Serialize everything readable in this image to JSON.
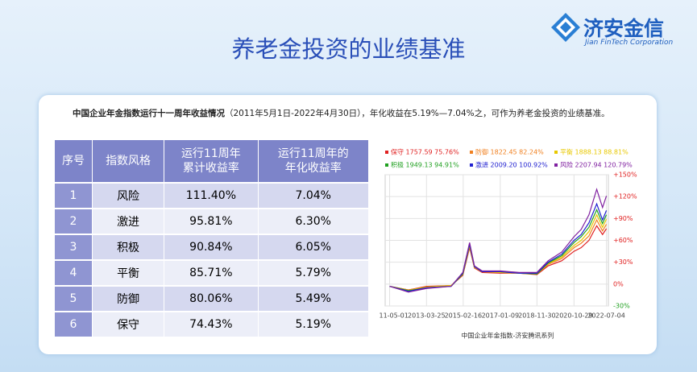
{
  "header": {
    "title": "养老金投资的业绩基准",
    "logo_name": "济安金信",
    "logo_sub": "Jian FinTech Corporation"
  },
  "description": {
    "bold": "中国企业年金指数运行十一周年收益情况",
    "rest": "（2011年5月1日-2022年4月30日），年化收益在5.19%—7.04%之，可作为养老金投资的业绩基准。"
  },
  "table": {
    "columns": [
      "序号",
      "指数风格",
      "运行11周年\n累计收益率",
      "运行11周年的\n年化收益率"
    ],
    "rows": [
      [
        "1",
        "风险",
        "111.40%",
        "7.04%"
      ],
      [
        "2",
        "激进",
        "95.81%",
        "6.30%"
      ],
      [
        "3",
        "积极",
        "90.84%",
        "6.05%"
      ],
      [
        "4",
        "平衡",
        "85.71%",
        "5.79%"
      ],
      [
        "5",
        "防御",
        "80.06%",
        "5.49%"
      ],
      [
        "6",
        "保守",
        "74.43%",
        "5.19%"
      ]
    ]
  },
  "chart_data": {
    "type": "line",
    "source": "中国企业年金指数-济安腾讯系列",
    "x": [
      2011.33,
      2012.3,
      2013.23,
      2014.5,
      2015.1,
      2015.45,
      2015.7,
      2016.1,
      2017.03,
      2018.0,
      2018.92,
      2019.5,
      2020.2,
      2020.83,
      2021.2,
      2021.6,
      2022.0,
      2022.3,
      2022.5
    ],
    "xlim": [
      2011.1,
      2022.6
    ],
    "xticks": [
      {
        "value": 2011.33,
        "label": "2011-05-01"
      },
      {
        "value": 2013.23,
        "label": "2013-03-25"
      },
      {
        "value": 2015.12,
        "label": "2015-02-16"
      },
      {
        "value": 2017.03,
        "label": "2017-01-09"
      },
      {
        "value": 2018.92,
        "label": "2018-11-30"
      },
      {
        "value": 2020.83,
        "label": "2020-10-29"
      },
      {
        "value": 2022.5,
        "label": "2022-07-04"
      }
    ],
    "ylim": [
      -30,
      150
    ],
    "yticks": [
      {
        "value": 150,
        "label": "+150%"
      },
      {
        "value": 120,
        "label": "+120%"
      },
      {
        "value": 90,
        "label": "+90%"
      },
      {
        "value": 60,
        "label": "+60%"
      },
      {
        "value": 30,
        "label": "+30%"
      },
      {
        "value": 0,
        "label": "0%"
      },
      {
        "value": -30,
        "label": "-30%"
      }
    ],
    "grid": true,
    "series": [
      {
        "name": "保守 1757.59 75.76%",
        "color": "#e02020",
        "values": [
          -3,
          -8,
          -3,
          -2,
          12,
          50,
          22,
          16,
          15,
          15,
          13,
          25,
          32,
          45,
          50,
          60,
          80,
          68,
          76
        ]
      },
      {
        "name": "防御 1822.45 82.24%",
        "color": "#f08020",
        "values": [
          -3,
          -8,
          -4,
          -2,
          13,
          52,
          23,
          17,
          16,
          15,
          14,
          27,
          35,
          50,
          56,
          66,
          88,
          73,
          82
        ]
      },
      {
        "name": "平衡 1888.13 88.81%",
        "color": "#e8c800",
        "values": [
          -3,
          -9,
          -4,
          -2,
          14,
          53,
          23,
          17,
          16,
          15,
          14,
          28,
          37,
          53,
          60,
          72,
          95,
          78,
          89
        ]
      },
      {
        "name": "积极 1949.13 94.91%",
        "color": "#20a020",
        "values": [
          -3,
          -9,
          -5,
          -3,
          14,
          54,
          24,
          17,
          17,
          15,
          14,
          29,
          39,
          57,
          65,
          78,
          102,
          83,
          95
        ]
      },
      {
        "name": "激进 2009.20 100.92%",
        "color": "#2020d0",
        "values": [
          -3,
          -10,
          -5,
          -3,
          15,
          55,
          24,
          17,
          17,
          15,
          15,
          30,
          41,
          60,
          68,
          84,
          110,
          88,
          101
        ]
      },
      {
        "name": "风险 2207.94 120.79%",
        "color": "#8020a0",
        "values": [
          -3,
          -11,
          -6,
          -3,
          16,
          57,
          25,
          18,
          18,
          16,
          16,
          32,
          44,
          65,
          75,
          95,
          130,
          105,
          121
        ]
      }
    ]
  }
}
